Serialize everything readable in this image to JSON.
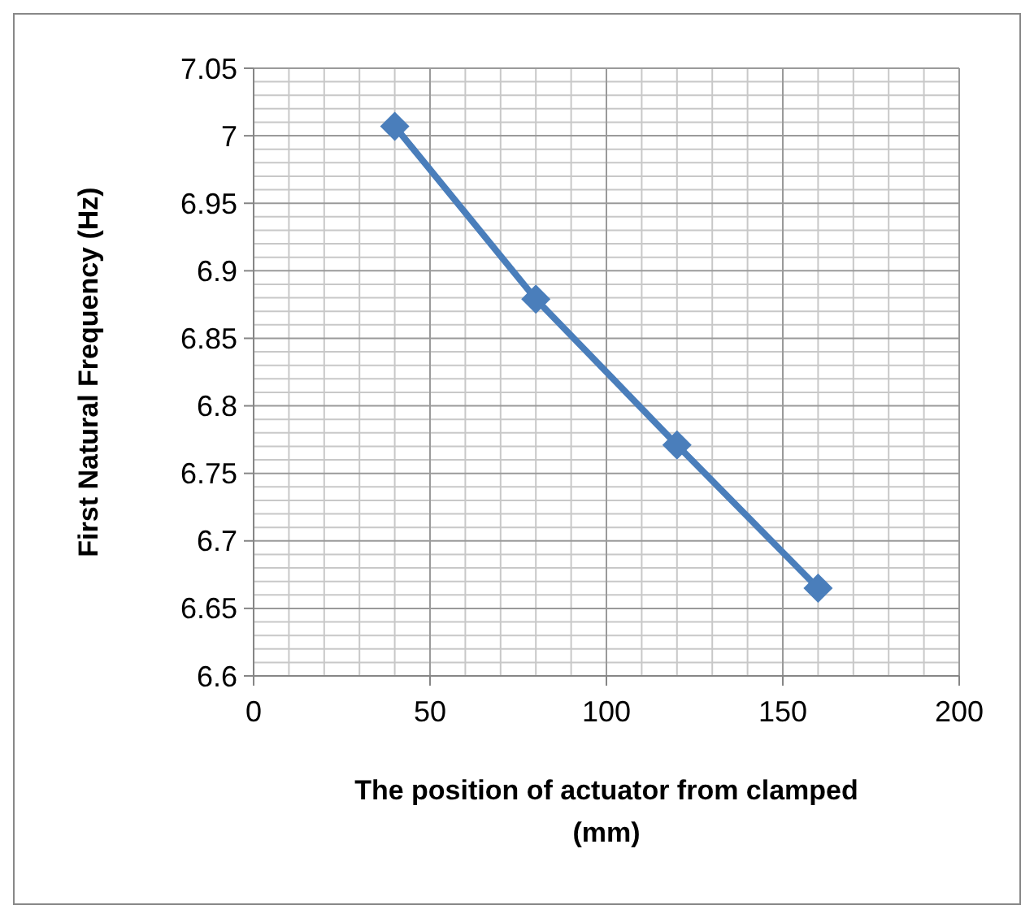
{
  "chart_data": {
    "type": "line",
    "xlabel": "The position of actuator from clamped (mm)",
    "ylabel": "First Natural Frequency (Hz)",
    "x": [
      40,
      80,
      120,
      160
    ],
    "series": [
      {
        "color": "#4a7ebb",
        "values": [
          7.007,
          6.879,
          6.771,
          6.665
        ]
      }
    ],
    "xlim": [
      0,
      200
    ],
    "xticks": [
      0,
      50,
      100,
      150,
      200
    ],
    "ylim": [
      6.6,
      7.05
    ],
    "yticks": [
      6.6,
      6.65,
      6.7,
      6.75,
      6.8,
      6.85,
      6.9,
      6.95,
      7,
      7.05
    ],
    "grid": true,
    "marker": "diamond",
    "line_style": "solid"
  }
}
